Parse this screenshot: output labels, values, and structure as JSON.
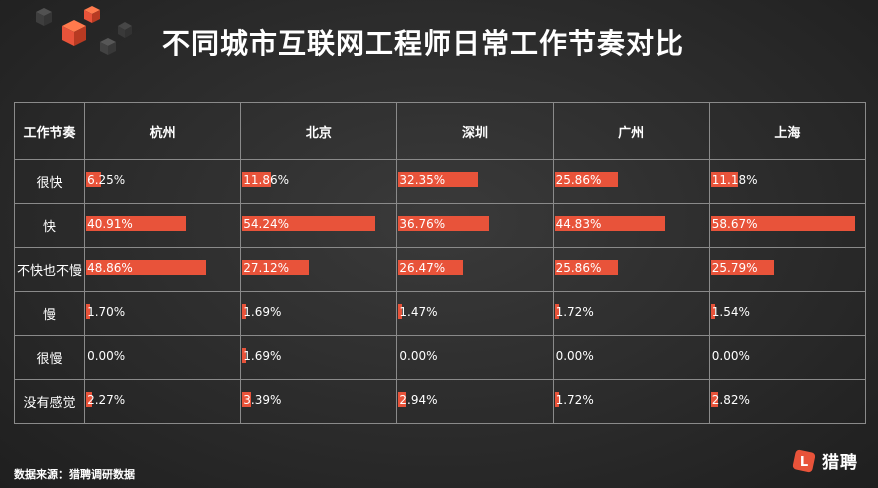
{
  "title": "不同城市互联网工程师日常工作节奏对比",
  "source": "数据来源：猎聘调研数据",
  "brand": {
    "name": "猎聘",
    "logo_letter": "L"
  },
  "colors": {
    "bar": "#e8533a",
    "background": "#2e2e2e",
    "grid": "#8a8a8a"
  },
  "chart_data": {
    "type": "table",
    "corner_header": "工作节奏",
    "columns": [
      "杭州",
      "北京",
      "深圳",
      "广州",
      "上海"
    ],
    "rows": [
      {
        "label": "很快",
        "values": [
          6.25,
          11.86,
          32.35,
          25.86,
          11.18
        ],
        "display": [
          "6.25%",
          "11.86%",
          "32.35%",
          "25.86%",
          "11.18%"
        ]
      },
      {
        "label": "快",
        "values": [
          40.91,
          54.24,
          36.76,
          44.83,
          58.67
        ],
        "display": [
          "40.91%",
          "54.24%",
          "36.76%",
          "44.83%",
          "58.67%"
        ]
      },
      {
        "label": "不快也不慢",
        "values": [
          48.86,
          27.12,
          26.47,
          25.86,
          25.79
        ],
        "display": [
          "48.86%",
          "27.12%",
          "26.47%",
          "25.86%",
          "25.79%"
        ]
      },
      {
        "label": "慢",
        "values": [
          1.7,
          1.69,
          1.47,
          1.72,
          1.54
        ],
        "display": [
          "1.70%",
          "1.69%",
          "1.47%",
          "1.72%",
          "1.54%"
        ]
      },
      {
        "label": "很慢",
        "values": [
          0.0,
          1.69,
          0.0,
          0.0,
          0.0
        ],
        "display": [
          "0.00%",
          "1.69%",
          "0.00%",
          "0.00%",
          "0.00%"
        ]
      },
      {
        "label": "没有感觉",
        "values": [
          2.27,
          3.39,
          2.94,
          1.72,
          2.82
        ],
        "display": [
          "2.27%",
          "3.39%",
          "2.94%",
          "1.72%",
          "2.82%"
        ]
      }
    ],
    "value_max": 58.67
  }
}
